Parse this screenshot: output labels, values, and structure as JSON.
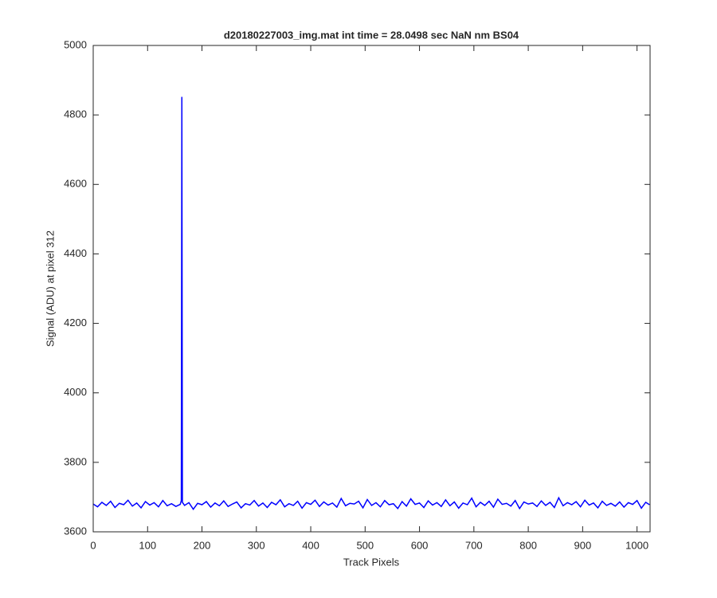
{
  "chart_data": {
    "type": "line",
    "title": "d20180227003_img.mat int time = 28.0498 sec  NaN nm BS04",
    "x_label": "Track Pixels",
    "y_label": "Signal (ADU) at pixel 312",
    "xlim": [
      0,
      1024
    ],
    "xticks": [
      0,
      100,
      200,
      300,
      400,
      500,
      600,
      700,
      800,
      900,
      1000
    ],
    "ylim": [
      3600,
      5000
    ],
    "yticks": [
      3600,
      3800,
      4000,
      4200,
      4400,
      4600,
      4800,
      5000
    ],
    "series": [
      {
        "color": "#0000ff",
        "x": [
          0,
          8,
          16,
          24,
          32,
          40,
          48,
          56,
          64,
          72,
          80,
          88,
          96,
          104,
          112,
          120,
          128,
          136,
          144,
          152,
          160,
          162,
          163,
          164,
          168,
          176,
          184,
          192,
          200,
          208,
          216,
          224,
          232,
          240,
          248,
          256,
          264,
          272,
          280,
          288,
          296,
          304,
          312,
          320,
          328,
          336,
          344,
          352,
          360,
          368,
          376,
          384,
          392,
          400,
          408,
          416,
          424,
          432,
          440,
          448,
          456,
          464,
          472,
          480,
          488,
          496,
          504,
          512,
          520,
          528,
          536,
          544,
          552,
          560,
          568,
          576,
          584,
          592,
          600,
          608,
          616,
          624,
          632,
          640,
          648,
          656,
          664,
          672,
          680,
          688,
          696,
          704,
          712,
          720,
          728,
          736,
          744,
          752,
          760,
          768,
          776,
          784,
          792,
          800,
          808,
          816,
          824,
          832,
          840,
          848,
          856,
          864,
          872,
          880,
          888,
          896,
          904,
          912,
          920,
          928,
          936,
          944,
          952,
          960,
          968,
          976,
          984,
          992,
          1000,
          1008,
          1016,
          1023
        ],
        "values": [
          3680,
          3672,
          3685,
          3676,
          3688,
          3670,
          3682,
          3678,
          3691,
          3674,
          3683,
          3669,
          3687,
          3677,
          3684,
          3672,
          3690,
          3675,
          3681,
          3673,
          3679,
          3690,
          4852,
          3685,
          3676,
          3684,
          3665,
          3682,
          3678,
          3687,
          3671,
          3683,
          3675,
          3689,
          3673,
          3680,
          3686,
          3669,
          3681,
          3677,
          3690,
          3674,
          3683,
          3670,
          3685,
          3678,
          3692,
          3672,
          3681,
          3676,
          3688,
          3668,
          3684,
          3679,
          3691,
          3673,
          3686,
          3677,
          3683,
          3671,
          3696,
          3675,
          3682,
          3680,
          3688,
          3669,
          3693,
          3676,
          3684,
          3672,
          3690,
          3678,
          3681,
          3667,
          3687,
          3674,
          3695,
          3679,
          3683,
          3670,
          3689,
          3677,
          3684,
          3673,
          3692,
          3675,
          3686,
          3668,
          3683,
          3678,
          3697,
          3672,
          3685,
          3676,
          3688,
          3671,
          3694,
          3679,
          3682,
          3674,
          3690,
          3667,
          3686,
          3680,
          3683,
          3673,
          3689,
          3676,
          3685,
          3670,
          3698,
          3675,
          3684,
          3678,
          3687,
          3672,
          3691,
          3677,
          3683,
          3669,
          3688,
          3676,
          3682,
          3674,
          3686,
          3671,
          3684,
          3679,
          3690,
          3668,
          3685,
          3678
        ]
      }
    ]
  }
}
